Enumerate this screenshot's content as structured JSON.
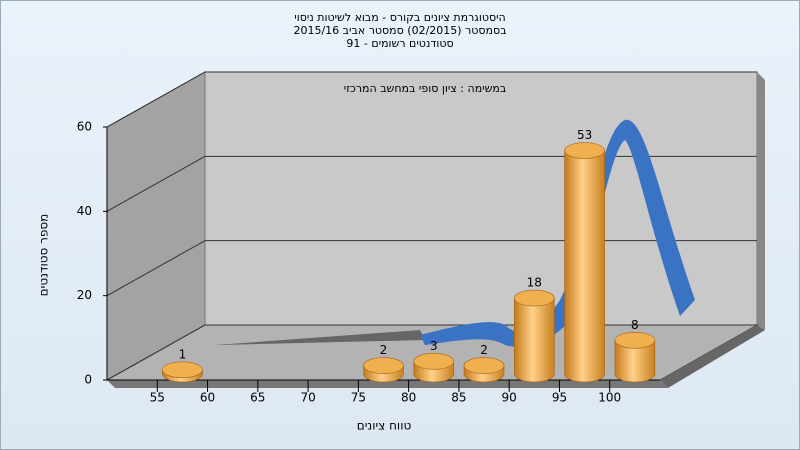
{
  "chart_data": {
    "type": "bar",
    "title": [
      "היסטוגרמת ציונים בקורס - מבוא לשיטות ניסוי",
      "בסמסטר  (02/2015)  סמסטר אביב 2015/16",
      "סטודנטים רשומים - 91"
    ],
    "subtitle": "במשימה : ציון סופי במחשב המרכזי",
    "xlabel": "טווח ציונים",
    "ylabel": "מספר סטודנטים",
    "x": [
      57.5,
      77.5,
      82.5,
      87.5,
      92.5,
      97.5,
      102.5
    ],
    "values": [
      1,
      2,
      3,
      2,
      18,
      53,
      8
    ],
    "color": "#e8a040",
    "xlim": [
      50,
      105
    ],
    "xticks": [
      55,
      60,
      65,
      70,
      75,
      80,
      85,
      90,
      95,
      100
    ],
    "ylim": [
      0,
      60
    ],
    "yticks": [
      0,
      20,
      40,
      60
    ],
    "grid": true
  }
}
